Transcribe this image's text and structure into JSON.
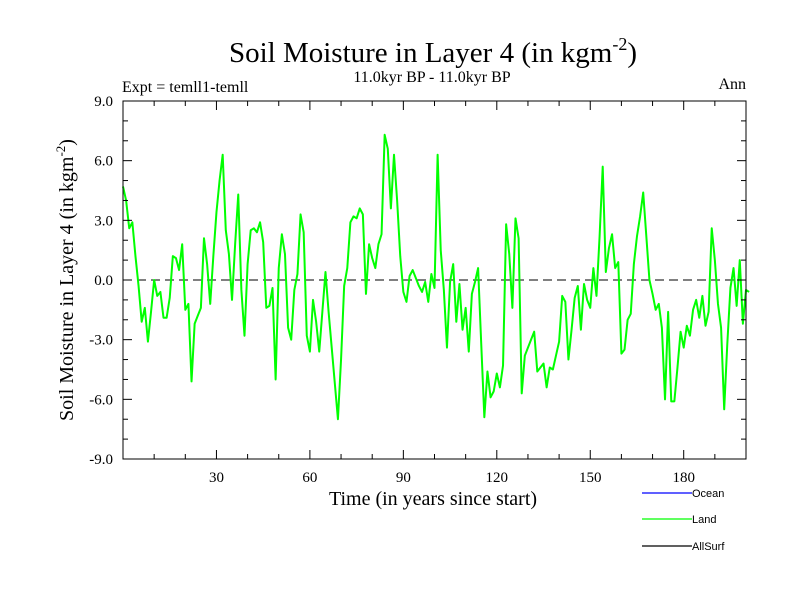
{
  "chart_data": {
    "type": "line",
    "title": "Soil Moisture in Layer 4 (in kgm",
    "title_sup": "-2",
    "title_end": ")",
    "subtitle": "11.0kyr BP - 11.0kyr BP",
    "left_label": "Expt = temll1-temll",
    "right_label": "Ann",
    "xlabel": "Time (in years since start)",
    "ylabel": "Soil Moisture in Layer 4 (in kgm",
    "ylabel_sup": "-2",
    "ylabel_end": ")",
    "xlim": [
      0,
      200
    ],
    "ylim": [
      -9,
      9
    ],
    "xticks": [
      30,
      60,
      90,
      120,
      150,
      180
    ],
    "xtick_labels": [
      "30",
      "60",
      "90",
      "120",
      "150",
      "180"
    ],
    "yticks": [
      -9,
      -6,
      -3,
      0,
      3,
      6,
      9
    ],
    "ytick_labels": [
      "-9.0",
      "-6.0",
      "-3.0",
      "0.0",
      "3.0",
      "6.0",
      "9.0"
    ],
    "reference_line": 0,
    "legend": [
      {
        "name": "Ocean",
        "color": "#0000ff"
      },
      {
        "name": "Land",
        "color": "#00ff00"
      },
      {
        "name": "AllSurf",
        "color": "#000000"
      }
    ],
    "series": [
      {
        "name": "Land",
        "color": "#00ff00",
        "x_start": 0,
        "x_step": 1,
        "values": [
          4.7,
          4.0,
          2.6,
          2.9,
          1.2,
          -0.3,
          -2.1,
          -1.4,
          -3.1,
          -1.6,
          0.0,
          -0.8,
          -0.6,
          -1.9,
          -1.9,
          -0.9,
          1.2,
          1.1,
          0.5,
          1.8,
          -1.5,
          -1.2,
          -5.1,
          -2.2,
          -1.8,
          -1.4,
          2.1,
          0.8,
          -1.2,
          1.2,
          3.4,
          5.0,
          6.3,
          2.5,
          1.3,
          -1.0,
          1.8,
          4.3,
          -0.5,
          -2.8,
          0.8,
          2.5,
          2.6,
          2.4,
          2.9,
          1.9,
          -1.4,
          -1.3,
          -0.4,
          -5.0,
          0.6,
          2.3,
          1.3,
          -2.4,
          -3.0,
          -0.5,
          0.3,
          3.3,
          2.4,
          -2.8,
          -3.6,
          -1.0,
          -2.1,
          -3.6,
          -1.6,
          0.4,
          -1.6,
          -3.4,
          -5.2,
          -7.0,
          -4.0,
          -0.3,
          0.6,
          2.9,
          3.2,
          3.1,
          3.6,
          3.3,
          -0.7,
          1.8,
          1.1,
          0.6,
          1.8,
          2.3,
          7.3,
          6.6,
          3.6,
          6.3,
          4.0,
          1.2,
          -0.6,
          -1.1,
          0.2,
          0.5,
          0.1,
          -0.3,
          -0.6,
          -0.1,
          -1.1,
          0.3,
          -0.4,
          6.3,
          1.5,
          -0.5,
          -3.4,
          -0.1,
          0.8,
          -2.1,
          -0.2,
          -2.5,
          -1.4,
          -3.6,
          -0.7,
          -0.1,
          0.6,
          -3.2,
          -6.9,
          -4.6,
          -5.9,
          -5.6,
          -4.7,
          -5.4,
          -4.3,
          2.8,
          1.3,
          -1.4,
          3.1,
          2.1,
          -5.7,
          -3.8,
          -3.4,
          -3.0,
          -2.6,
          -4.6,
          -4.4,
          -4.2,
          -5.4,
          -4.4,
          -4.5,
          -3.8,
          -3.1,
          -0.8,
          -1.1,
          -4.0,
          -2.5,
          -0.9,
          -0.3,
          -2.5,
          -0.2,
          -1.0,
          -1.4,
          0.6,
          -0.8,
          2.2,
          5.7,
          0.4,
          1.6,
          2.3,
          0.6,
          0.9,
          -3.7,
          -3.5,
          -2.0,
          -1.7,
          0.8,
          2.2,
          3.2,
          4.4,
          2.2,
          0.0,
          -0.7,
          -1.5,
          -1.2,
          -2.4,
          -6.0,
          -1.6,
          -6.1,
          -6.1,
          -4.4,
          -2.6,
          -3.4,
          -2.3,
          -2.8,
          -1.5,
          -1.0,
          -1.9,
          -0.8,
          -2.3,
          -1.6,
          2.6,
          1.0,
          -1.2,
          -2.4,
          -6.5,
          -3.2,
          -0.4,
          0.6,
          -1.3,
          1.0,
          -2.2,
          -0.5,
          -0.6
        ]
      }
    ]
  }
}
